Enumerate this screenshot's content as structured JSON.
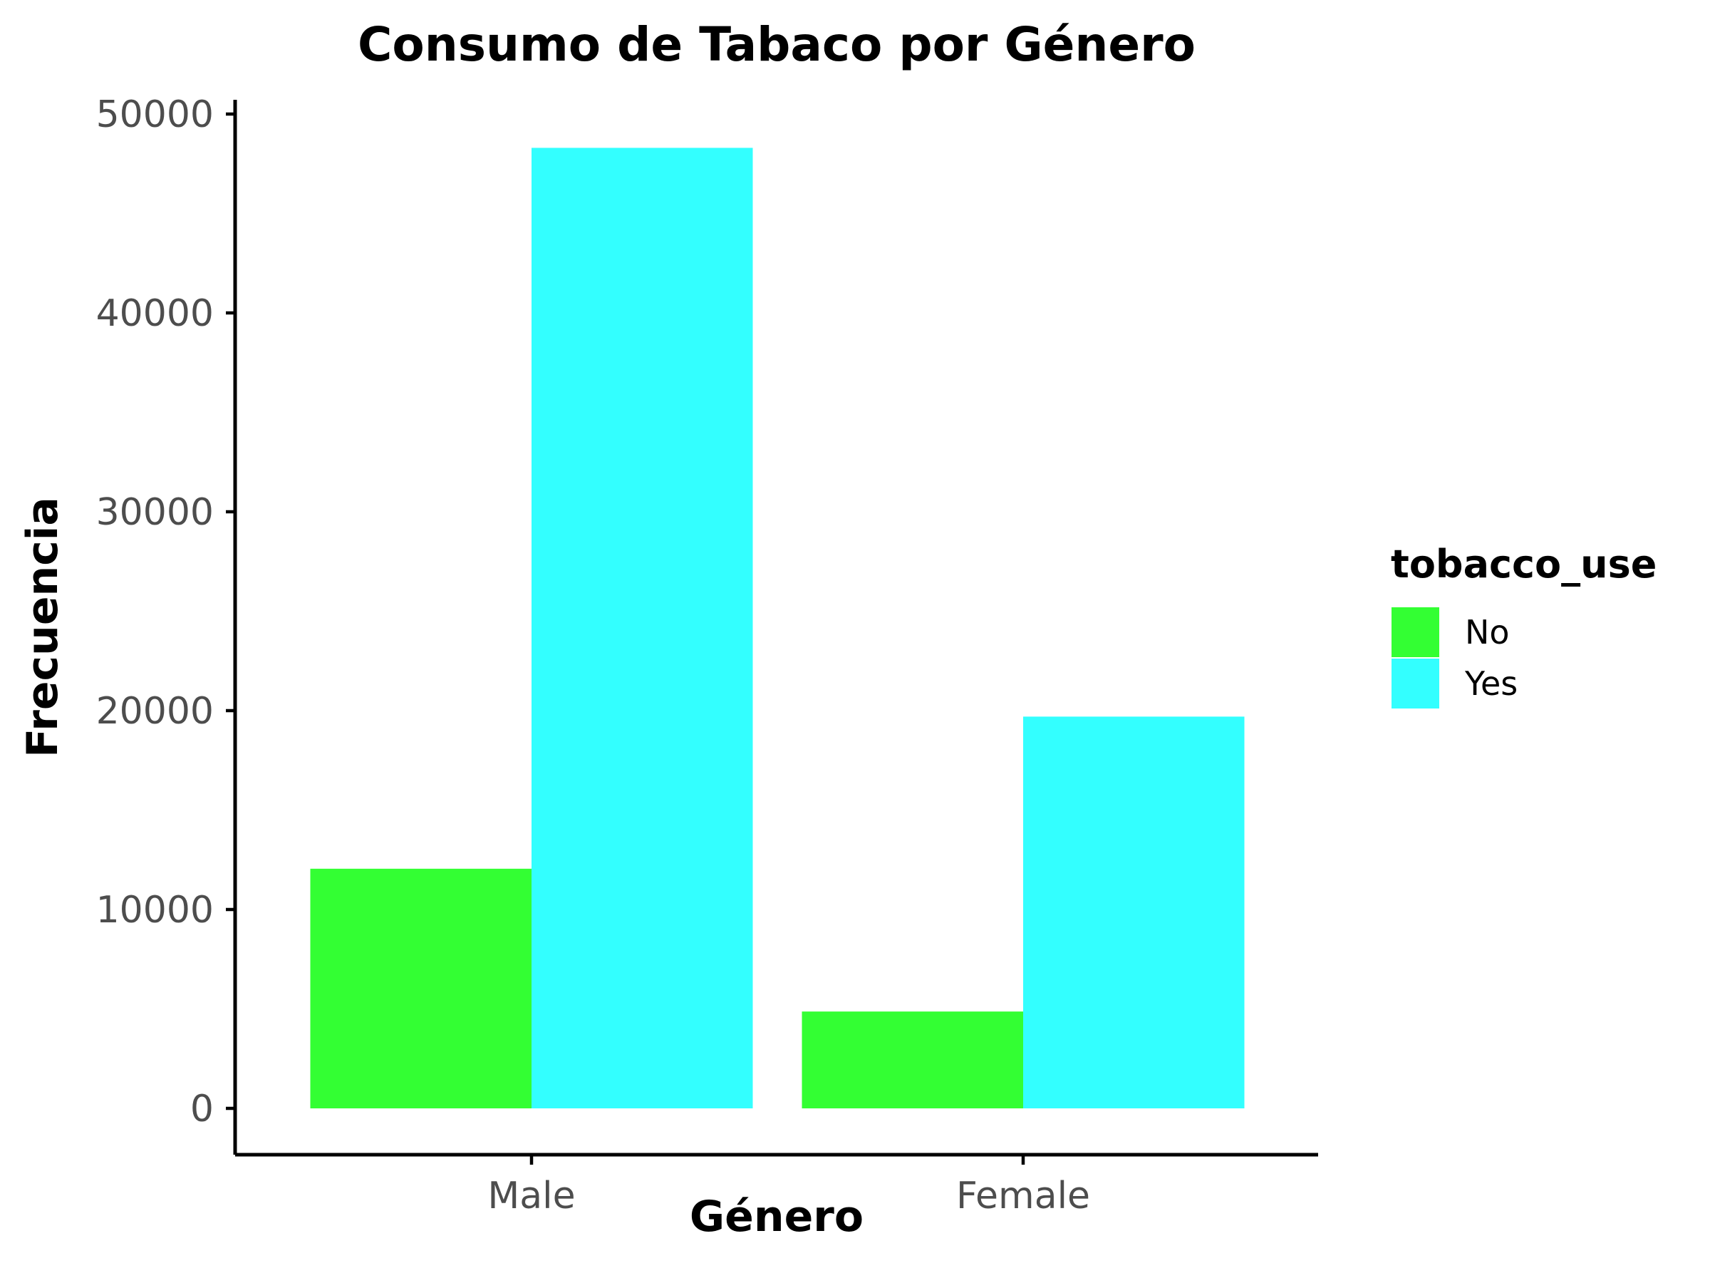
{
  "chart_data": {
    "type": "bar",
    "title": "Consumo de Tabaco por Género",
    "xlabel": "Género",
    "ylabel": "Frecuencia",
    "categories": [
      "Male",
      "Female"
    ],
    "series": [
      {
        "name": "No",
        "color": "#33ff33",
        "values": [
          12050,
          4870
        ]
      },
      {
        "name": "Yes",
        "color": "#33ffff",
        "values": [
          48300,
          19700
        ]
      }
    ],
    "ylim": [
      0,
      50000
    ],
    "yticks": [
      0,
      10000,
      20000,
      30000,
      40000,
      50000
    ],
    "ytick_labels": [
      "0",
      "10000",
      "20000",
      "30000",
      "40000",
      "50000"
    ],
    "legend": {
      "title": "tobacco_use",
      "position": "right"
    },
    "grid": false
  }
}
